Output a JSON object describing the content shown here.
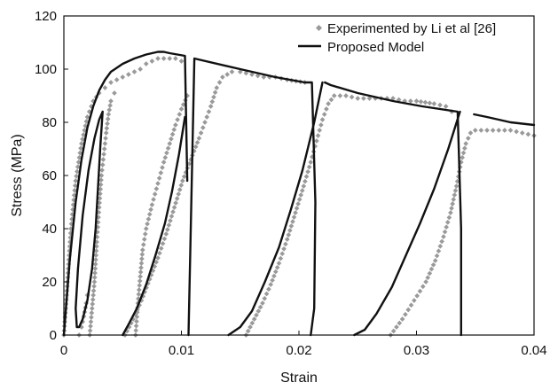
{
  "chart_data": {
    "type": "scatter",
    "title": "",
    "xlabel": "Strain",
    "ylabel": "Stress (MPa)",
    "xlim": [
      0,
      0.04
    ],
    "ylim": [
      0,
      120
    ],
    "x_ticks": [
      0,
      0.01,
      0.02,
      0.03,
      0.04
    ],
    "x_tick_labels": [
      "0",
      "0.01",
      "0.02",
      "0.03",
      "0.04"
    ],
    "y_ticks": [
      0,
      20,
      40,
      60,
      80,
      100,
      120
    ],
    "y_tick_labels": [
      "0",
      "20",
      "40",
      "60",
      "80",
      "100",
      "120"
    ],
    "grid": false,
    "legend_position": "top-right",
    "series": [
      {
        "name": "Experimented by Li et al [26]",
        "style": "points",
        "color": "#9a9a9a",
        "segments": [
          [
            [
              0.0,
              0
            ],
            [
              0.0003,
              20
            ],
            [
              0.0006,
              40
            ],
            [
              0.001,
              58
            ],
            [
              0.0015,
              72
            ],
            [
              0.002,
              82
            ],
            [
              0.0025,
              88
            ],
            [
              0.003,
              91
            ],
            [
              0.0035,
              93
            ],
            [
              0.004,
              95
            ],
            [
              0.0045,
              96
            ],
            [
              0.005,
              97
            ],
            [
              0.0055,
              98
            ],
            [
              0.006,
              99
            ],
            [
              0.0065,
              100
            ],
            [
              0.007,
              102
            ],
            [
              0.0075,
              103
            ],
            [
              0.008,
              104
            ],
            [
              0.0085,
              104
            ],
            [
              0.009,
              104
            ],
            [
              0.0095,
              104
            ],
            [
              0.01,
              103
            ]
          ],
          [
            [
              0.0022,
              0
            ],
            [
              0.0024,
              10
            ],
            [
              0.0026,
              20
            ],
            [
              0.0028,
              35
            ],
            [
              0.003,
              48
            ],
            [
              0.0032,
              60
            ],
            [
              0.0034,
              68
            ],
            [
              0.0036,
              76
            ],
            [
              0.0038,
              83
            ],
            [
              0.004,
              88
            ],
            [
              0.0043,
              91
            ]
          ],
          [
            [
              0.0013,
              0
            ],
            [
              0.0015,
              3
            ],
            [
              0.0017,
              7
            ],
            [
              0.0019,
              12
            ],
            [
              0.002,
              15
            ]
          ],
          [
            [
              0.0052,
              0
            ],
            [
              0.0059,
              6
            ],
            [
              0.0066,
              13
            ],
            [
              0.0073,
              21
            ],
            [
              0.008,
              29
            ],
            [
              0.0087,
              38
            ],
            [
              0.0094,
              48
            ],
            [
              0.0101,
              58
            ],
            [
              0.0108,
              66
            ],
            [
              0.0115,
              74
            ],
            [
              0.012,
              80
            ],
            [
              0.0125,
              86
            ],
            [
              0.013,
              93
            ],
            [
              0.0135,
              97
            ],
            [
              0.0143,
              99
            ],
            [
              0.015,
              99
            ],
            [
              0.016,
              98
            ],
            [
              0.017,
              97
            ],
            [
              0.018,
              97
            ],
            [
              0.019,
              96
            ],
            [
              0.0205,
              95
            ]
          ],
          [
            [
              0.0061,
              0
            ],
            [
              0.0063,
              12
            ],
            [
              0.0065,
              22
            ],
            [
              0.0067,
              32
            ],
            [
              0.007,
              40
            ],
            [
              0.0075,
              49
            ],
            [
              0.008,
              57
            ],
            [
              0.0085,
              65
            ],
            [
              0.009,
              72
            ],
            [
              0.0095,
              79
            ],
            [
              0.01,
              85
            ],
            [
              0.0105,
              90
            ]
          ],
          [
            [
              0.0155,
              0
            ],
            [
              0.0162,
              6
            ],
            [
              0.0169,
              12
            ],
            [
              0.0176,
              19
            ],
            [
              0.0183,
              27
            ],
            [
              0.019,
              36
            ],
            [
              0.0197,
              46
            ],
            [
              0.0204,
              56
            ],
            [
              0.021,
              65
            ],
            [
              0.0215,
              73
            ],
            [
              0.022,
              81
            ],
            [
              0.0225,
              87
            ],
            [
              0.023,
              90
            ],
            [
              0.024,
              90
            ],
            [
              0.025,
              89
            ],
            [
              0.026,
              89
            ],
            [
              0.027,
              89
            ],
            [
              0.028,
              89
            ],
            [
              0.029,
              88
            ],
            [
              0.03,
              88
            ],
            [
              0.0315,
              87
            ],
            [
              0.0325,
              86
            ],
            [
              0.033,
              84
            ]
          ],
          [
            [
              0.0278,
              0
            ],
            [
              0.0288,
              6
            ],
            [
              0.0298,
              13
            ],
            [
              0.0308,
              20
            ],
            [
              0.0316,
              28
            ],
            [
              0.0323,
              37
            ],
            [
              0.0329,
              46
            ],
            [
              0.0334,
              56
            ],
            [
              0.0338,
              65
            ],
            [
              0.0342,
              72
            ],
            [
              0.0346,
              76
            ],
            [
              0.035,
              77
            ],
            [
              0.036,
              77
            ],
            [
              0.037,
              77
            ],
            [
              0.038,
              77
            ],
            [
              0.039,
              76
            ],
            [
              0.04,
              75
            ]
          ]
        ]
      },
      {
        "name": "Proposed Model",
        "style": "line",
        "color": "#111111",
        "segments": [
          [
            [
              0.0,
              0
            ],
            [
              0.0005,
              28
            ],
            [
              0.001,
              50
            ],
            [
              0.0015,
              66
            ],
            [
              0.002,
              78
            ],
            [
              0.0025,
              86
            ],
            [
              0.003,
              92
            ],
            [
              0.0035,
              96
            ],
            [
              0.004,
              99
            ],
            [
              0.005,
              102
            ],
            [
              0.006,
              104
            ],
            [
              0.007,
              105.5
            ],
            [
              0.008,
              106.5
            ],
            [
              0.0085,
              106.5
            ],
            [
              0.009,
              106
            ],
            [
              0.0103,
              105
            ],
            [
              0.0105,
              58
            ]
          ],
          [
            [
              0.0033,
              84
            ],
            [
              0.0031,
              71
            ],
            [
              0.0029,
              55
            ],
            [
              0.0027,
              40
            ],
            [
              0.0024,
              25
            ],
            [
              0.002,
              13
            ],
            [
              0.0016,
              6
            ],
            [
              0.0013,
              3
            ],
            [
              0.0011,
              3
            ],
            [
              0.001,
              10
            ],
            [
              0.0012,
              25
            ],
            [
              0.0016,
              45
            ],
            [
              0.0021,
              62
            ],
            [
              0.0026,
              74
            ],
            [
              0.003,
              81
            ],
            [
              0.0033,
              84
            ]
          ],
          [
            [
              0.0103,
              82
            ],
            [
              0.0098,
              68
            ],
            [
              0.0092,
              54
            ],
            [
              0.0086,
              42
            ],
            [
              0.0078,
              30
            ],
            [
              0.007,
              19
            ],
            [
              0.0062,
              10
            ],
            [
              0.0055,
              4
            ],
            [
              0.005,
              0
            ]
          ],
          [
            [
              0.0106,
              0
            ],
            [
              0.0111,
              104
            ],
            [
              0.015,
              100
            ],
            [
              0.018,
              97
            ],
            [
              0.0205,
              95
            ],
            [
              0.0211,
              95
            ],
            [
              0.0214,
              50
            ],
            [
              0.0213,
              10
            ],
            [
              0.021,
              0
            ]
          ],
          [
            [
              0.022,
              95
            ],
            [
              0.0213,
              80
            ],
            [
              0.0203,
              62
            ],
            [
              0.0193,
              47
            ],
            [
              0.0183,
              33
            ],
            [
              0.0171,
              20
            ],
            [
              0.016,
              9
            ],
            [
              0.015,
              3
            ],
            [
              0.014,
              0
            ]
          ],
          [
            [
              0.0222,
              95
            ],
            [
              0.0227,
              94
            ],
            [
              0.025,
              91
            ],
            [
              0.028,
              88
            ],
            [
              0.0305,
              86
            ],
            [
              0.0335,
              84
            ],
            [
              0.0338,
              40
            ],
            [
              0.0338,
              0
            ]
          ],
          [
            [
              0.0337,
              84
            ],
            [
              0.0327,
              70
            ],
            [
              0.0315,
              55
            ],
            [
              0.0303,
              42
            ],
            [
              0.0291,
              30
            ],
            [
              0.0279,
              18
            ],
            [
              0.0266,
              8
            ],
            [
              0.0256,
              2
            ],
            [
              0.0247,
              0
            ]
          ],
          [
            [
              0.0349,
              83
            ],
            [
              0.036,
              82
            ],
            [
              0.038,
              80
            ],
            [
              0.04,
              79
            ]
          ]
        ]
      }
    ]
  }
}
